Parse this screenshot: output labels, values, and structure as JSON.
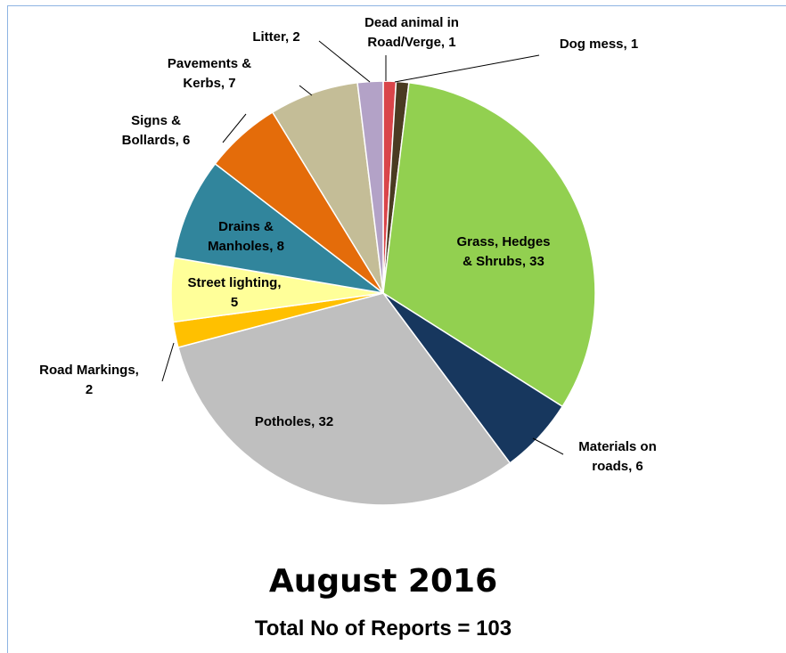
{
  "chart_data": {
    "type": "pie",
    "title": "August 2016",
    "subtitle": "Total No of Reports = 103",
    "values": [
      1,
      1,
      33,
      6,
      32,
      2,
      5,
      8,
      6,
      7,
      2
    ],
    "value_labels": [
      "Dead animal in\nRoad/Verge, 1",
      "Dog mess, 1",
      "Grass, Hedges\n& Shrubs, 33",
      "Materials on\nroads, 6",
      "Potholes, 32",
      "Road Markings,\n2",
      "Street lighting,\n5",
      "Drains &\nManholes, 8",
      "Signs &\nBollards, 6",
      "Pavements &\nKerbs, 7",
      "Litter, 2"
    ],
    "colors": [
      "#d9454a",
      "#4a3b22",
      "#92d050",
      "#17375e",
      "#bfbfbf",
      "#ffc000",
      "#ffff99",
      "#31859c",
      "#e46c0a",
      "#c4bd97",
      "#b3a2c7"
    ]
  }
}
